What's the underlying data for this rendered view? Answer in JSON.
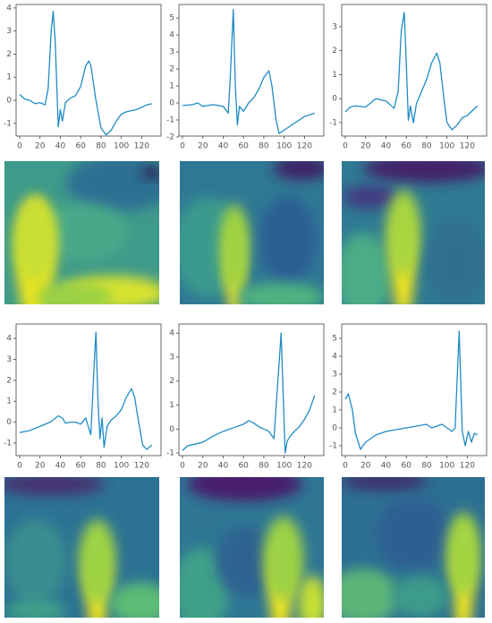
{
  "chart_data": [
    {
      "type": "line",
      "color": "#1f8bc4",
      "x": [
        0,
        5,
        10,
        15,
        20,
        25,
        28,
        31,
        33,
        35,
        37,
        38,
        40,
        42,
        45,
        50,
        55,
        60,
        65,
        68,
        70,
        75,
        80,
        85,
        90,
        95,
        100,
        105,
        110,
        115,
        120,
        125,
        130
      ],
      "values": [
        0.25,
        0.05,
        0,
        -0.15,
        -0.1,
        -0.2,
        0.5,
        3.0,
        3.85,
        2.5,
        0,
        -1.15,
        -0.4,
        -0.9,
        -0.1,
        0.1,
        0.2,
        0.6,
        1.5,
        1.7,
        1.5,
        0,
        -1.2,
        -1.5,
        -1.3,
        -0.9,
        -0.6,
        -0.5,
        -0.45,
        -0.4,
        -0.3,
        -0.2,
        -0.15
      ],
      "xlim": [
        -3.5,
        139
      ],
      "xticks": [
        0,
        20,
        40,
        60,
        80,
        100,
        120
      ],
      "ylim": [
        -1.55,
        4.15
      ],
      "yticks": [
        -1,
        0,
        1,
        2,
        3,
        4
      ]
    },
    {
      "type": "line",
      "color": "#1f8bc4",
      "x": [
        0,
        10,
        15,
        20,
        30,
        40,
        45,
        47,
        50,
        52,
        54,
        56,
        60,
        65,
        70,
        75,
        80,
        85,
        88,
        92,
        95,
        100,
        110,
        120,
        130
      ],
      "values": [
        -0.15,
        -0.1,
        0,
        -0.2,
        -0.1,
        -0.2,
        -0.6,
        1.5,
        5.5,
        1.0,
        -1.3,
        -0.2,
        -0.5,
        0,
        0.3,
        0.8,
        1.5,
        1.9,
        1.0,
        -1.0,
        -1.8,
        -1.6,
        -1.2,
        -0.8,
        -0.6
      ],
      "xlim": [
        -3.5,
        139
      ],
      "xticks": [
        0,
        20,
        40,
        60,
        80,
        100,
        120
      ],
      "ylim": [
        -1.95,
        5.8
      ],
      "yticks": [
        -2,
        -1,
        0,
        1,
        2,
        3,
        4,
        5
      ]
    },
    {
      "type": "line",
      "color": "#1f8bc4",
      "x": [
        0,
        5,
        10,
        20,
        30,
        40,
        48,
        52,
        55,
        58,
        60,
        62,
        64,
        67,
        70,
        75,
        80,
        85,
        90,
        93,
        97,
        100,
        105,
        110,
        115,
        120,
        125,
        130
      ],
      "values": [
        -0.55,
        -0.35,
        -0.3,
        -0.35,
        0,
        -0.1,
        -0.4,
        0.3,
        2.8,
        3.6,
        1.5,
        -0.9,
        -0.3,
        -1.0,
        -0.2,
        0.3,
        0.8,
        1.5,
        1.9,
        1.5,
        0,
        -1.0,
        -1.3,
        -1.1,
        -0.8,
        -0.7,
        -0.5,
        -0.3
      ],
      "xlim": [
        -3.5,
        139
      ],
      "xticks": [
        0,
        20,
        40,
        60,
        80,
        100,
        120
      ],
      "ylim": [
        -1.56,
        3.93
      ],
      "yticks": [
        -1,
        0,
        1,
        2,
        3
      ]
    },
    {
      "type": "line",
      "color": "#1f8bc4",
      "x": [
        0,
        10,
        20,
        30,
        38,
        42,
        45,
        50,
        55,
        60,
        65,
        68,
        70,
        73,
        75,
        77,
        79,
        81,
        83,
        86,
        90,
        95,
        100,
        105,
        110,
        113,
        117,
        121,
        125,
        130
      ],
      "values": [
        -0.5,
        -0.4,
        -0.2,
        0.0,
        0.3,
        0.2,
        -0.05,
        0,
        0,
        -0.1,
        0.2,
        -0.3,
        -0.6,
        2.5,
        4.3,
        1.0,
        -0.8,
        0.2,
        -1.2,
        -0.2,
        0.1,
        0.3,
        0.6,
        1.2,
        1.6,
        1.2,
        0,
        -1.1,
        -1.3,
        -1.1
      ],
      "xlim": [
        -3.5,
        139
      ],
      "xticks": [
        0,
        20,
        40,
        60,
        80,
        100,
        120
      ],
      "ylim": [
        -1.6,
        4.69
      ],
      "yticks": [
        -1,
        0,
        1,
        2,
        3,
        4
      ]
    },
    {
      "type": "line",
      "color": "#1f8bc4",
      "x": [
        0,
        5,
        10,
        20,
        30,
        40,
        50,
        60,
        65,
        70,
        75,
        80,
        85,
        90,
        93,
        97,
        99,
        101,
        103,
        106,
        110,
        115,
        120,
        125,
        130
      ],
      "values": [
        -0.9,
        -0.7,
        -0.65,
        -0.55,
        -0.3,
        -0.1,
        0.05,
        0.2,
        0.35,
        0.25,
        0.1,
        0,
        -0.1,
        -0.4,
        1.5,
        4.0,
        1.5,
        -1.0,
        -0.5,
        -0.3,
        -0.1,
        0.1,
        0.4,
        0.8,
        1.4
      ],
      "xlim": [
        -3.5,
        139
      ],
      "xticks": [
        0,
        20,
        40,
        60,
        80,
        100,
        120
      ],
      "ylim": [
        -1.11,
        4.38
      ],
      "yticks": [
        -1,
        0,
        1,
        2,
        3,
        4
      ]
    },
    {
      "type": "line",
      "color": "#1f8bc4",
      "x": [
        0,
        3,
        7,
        10,
        15,
        20,
        30,
        40,
        60,
        80,
        85,
        95,
        105,
        108,
        112,
        115,
        118,
        121,
        124,
        127,
        130
      ],
      "values": [
        1.6,
        1.9,
        1.0,
        -0.3,
        -1.2,
        -0.8,
        -0.4,
        -0.2,
        0,
        0.2,
        0,
        0.2,
        -0.2,
        0,
        5.4,
        -0.2,
        -1.0,
        -0.2,
        -0.8,
        -0.3,
        -0.4
      ],
      "xlim": [
        -3.5,
        139
      ],
      "xticks": [
        0,
        20,
        40,
        60,
        80,
        100,
        120
      ],
      "ylim": [
        -1.55,
        5.8
      ],
      "yticks": [
        -1,
        0,
        1,
        2,
        3,
        4,
        5
      ]
    }
  ]
}
